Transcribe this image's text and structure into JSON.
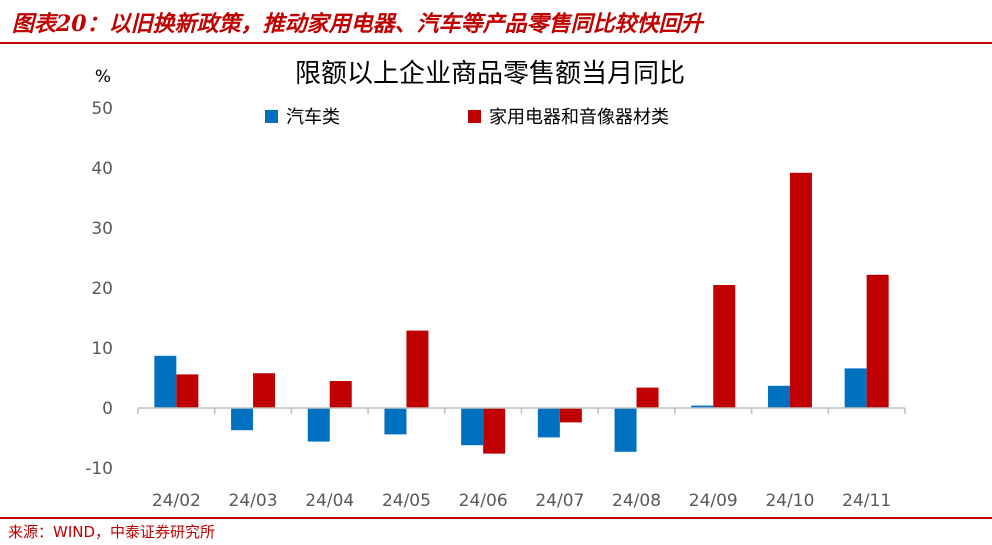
{
  "header": {
    "title": "图表20：以旧换新政策，推动家用电器、汽车等产品零售同比较快回升"
  },
  "footer": {
    "source": "来源：WIND，中泰证券研究所"
  },
  "colors": {
    "brand_red": "#c00000",
    "series_blue": "#0070c0",
    "series_red": "#c00000"
  },
  "chart_data": {
    "type": "bar",
    "title": "限额以上企业商品零售额当月同比",
    "ylabel": "%",
    "xlabel": "",
    "ylim": [
      -10,
      50
    ],
    "yticks": [
      -10,
      0,
      10,
      20,
      30,
      40,
      50
    ],
    "grid": false,
    "legend_position": "top",
    "categories": [
      "24/02",
      "24/03",
      "24/04",
      "24/05",
      "24/06",
      "24/07",
      "24/08",
      "24/09",
      "24/10",
      "24/11"
    ],
    "series": [
      {
        "name": "汽车类",
        "color": "#0070c0",
        "values": [
          8.7,
          -3.7,
          -5.6,
          -4.4,
          -6.2,
          -4.9,
          -7.3,
          0.4,
          3.7,
          6.6
        ]
      },
      {
        "name": "家用电器和音像器材类",
        "color": "#c00000",
        "values": [
          5.6,
          5.8,
          4.5,
          12.9,
          -7.6,
          -2.4,
          3.4,
          20.5,
          39.2,
          22.2
        ]
      }
    ]
  }
}
